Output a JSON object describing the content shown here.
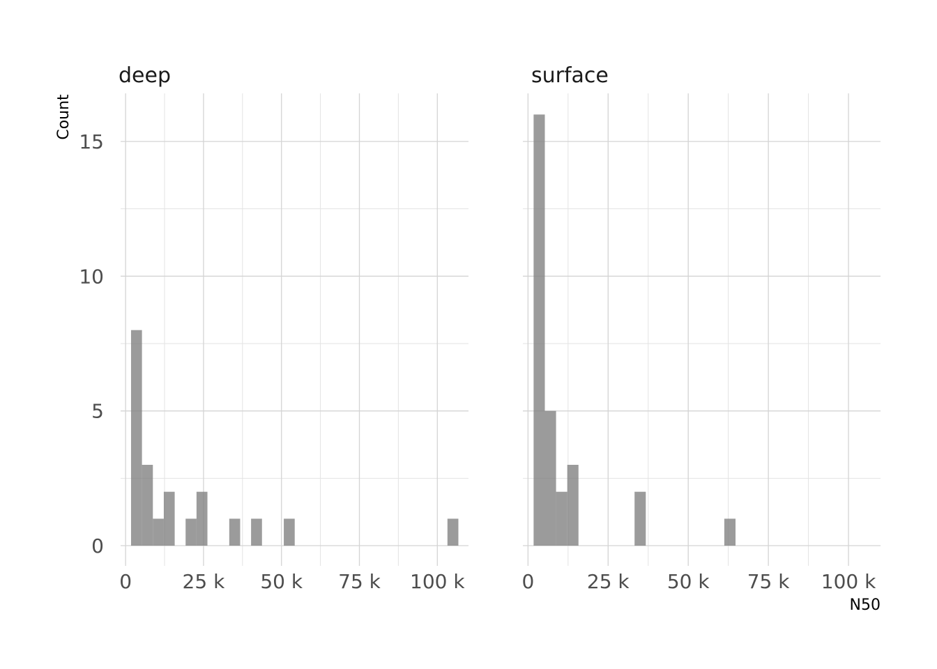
{
  "chart_data": {
    "type": "bar",
    "subtype": "histogram-faceted",
    "xlabel": "N50",
    "ylabel": "Count",
    "xlim": [
      0,
      110000
    ],
    "ylim": [
      0,
      16
    ],
    "x_ticks": [
      0,
      25000,
      50000,
      75000,
      100000
    ],
    "x_tick_labels": [
      "0",
      "25 k",
      "50 k",
      "75 k",
      "100 k"
    ],
    "y_ticks": [
      0,
      5,
      10,
      15
    ],
    "y_tick_labels": [
      "0",
      "5",
      "10",
      "15"
    ],
    "grid": true,
    "colors": {
      "bar": "#7f7f7f"
    },
    "bin_width": 3500,
    "facets": [
      {
        "name": "deep",
        "bins": [
          {
            "x0": 1750,
            "x1": 5250,
            "count": 8
          },
          {
            "x0": 5250,
            "x1": 8750,
            "count": 3
          },
          {
            "x0": 8750,
            "x1": 12250,
            "count": 1
          },
          {
            "x0": 12250,
            "x1": 15750,
            "count": 2
          },
          {
            "x0": 19250,
            "x1": 22750,
            "count": 1
          },
          {
            "x0": 22750,
            "x1": 26250,
            "count": 2
          },
          {
            "x0": 33250,
            "x1": 36750,
            "count": 1
          },
          {
            "x0": 40250,
            "x1": 43750,
            "count": 1
          },
          {
            "x0": 50750,
            "x1": 54250,
            "count": 1
          },
          {
            "x0": 103250,
            "x1": 106750,
            "count": 1
          }
        ]
      },
      {
        "name": "surface",
        "bins": [
          {
            "x0": 1750,
            "x1": 5250,
            "count": 16
          },
          {
            "x0": 5250,
            "x1": 8750,
            "count": 5
          },
          {
            "x0": 8750,
            "x1": 12250,
            "count": 2
          },
          {
            "x0": 12250,
            "x1": 15750,
            "count": 3
          },
          {
            "x0": 33250,
            "x1": 36750,
            "count": 2
          },
          {
            "x0": 61250,
            "x1": 64750,
            "count": 1
          }
        ]
      }
    ]
  }
}
